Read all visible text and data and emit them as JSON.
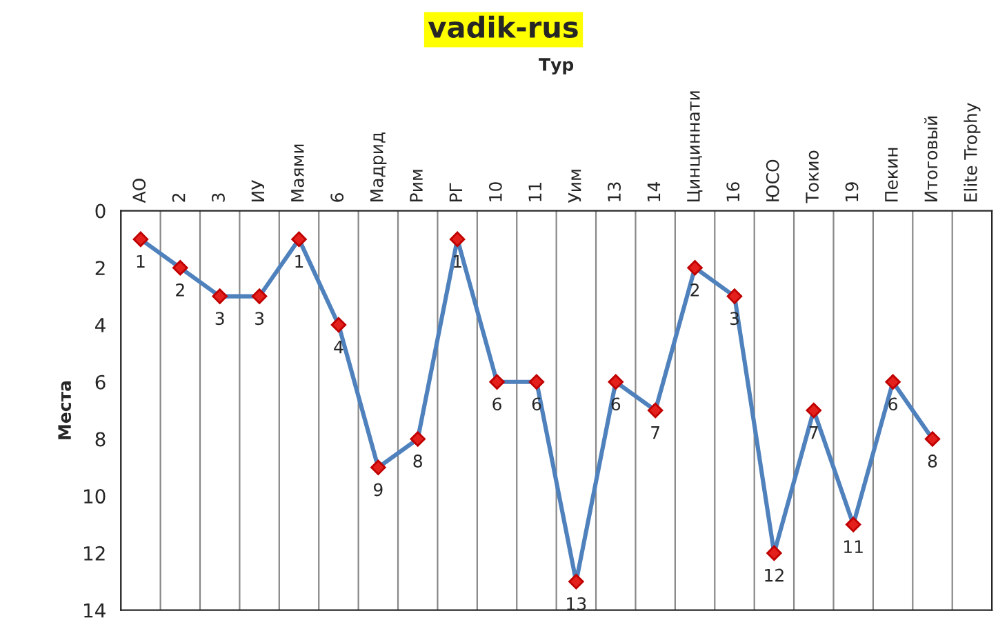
{
  "chart_data": {
    "type": "line",
    "title": "vadik-rus",
    "xlabel": "Тур",
    "ylabel": "Места",
    "categories": [
      "АО",
      "2",
      "3",
      "ИУ",
      "Маями",
      "6",
      "Мадрид",
      "Рим",
      "РГ",
      "10",
      "11",
      "Уим",
      "13",
      "14",
      "Цинциннати",
      "16",
      "ЮСО",
      "Токио",
      "19",
      "Пекин",
      "Итоговый",
      "Elite Trophy"
    ],
    "series": [
      {
        "color": "#4f81bd",
        "values": [
          1,
          2,
          3,
          3,
          1,
          4,
          9,
          8,
          1,
          6,
          6,
          13,
          6,
          7,
          2,
          3,
          12,
          7,
          11,
          6,
          8,
          null
        ]
      }
    ],
    "ylim": [
      14,
      0
    ],
    "yticks": [
      0,
      2,
      4,
      6,
      8,
      10,
      12,
      14
    ],
    "grid": "x",
    "marker": "diamond",
    "line_style": "solid",
    "data_labels": true,
    "legend": false
  }
}
